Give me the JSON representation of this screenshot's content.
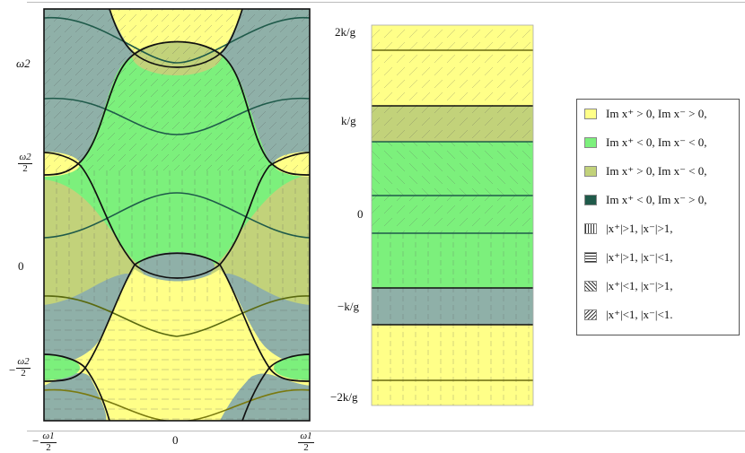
{
  "left_panel": {
    "y_ticks": {
      "omega2": "ω2",
      "half_omega2": {
        "num": "ω2",
        "den": "2"
      },
      "zero": "0",
      "neg_half_omega2": {
        "num": "ω2",
        "den": "2",
        "sign": "−"
      }
    },
    "x_ticks": {
      "neg_half_omega1": {
        "num": "ω1",
        "den": "2",
        "sign": "−"
      },
      "zero": "0",
      "half_omega1": {
        "num": "ω1",
        "den": "2"
      }
    }
  },
  "right_panel": {
    "y_ticks": [
      "2k/g",
      "k/g",
      "0",
      "−k/g",
      "−2k/g"
    ]
  },
  "legend": {
    "items": [
      {
        "label": "Im x⁺ > 0, Im x⁻ > 0,",
        "swatch": "#ffff88"
      },
      {
        "label": "Im x⁺ < 0, Im x⁻ < 0,",
        "swatch": "#7cf07c"
      },
      {
        "label": "Im x⁺ > 0, Im x⁻ < 0,",
        "swatch": "#c2d27a"
      },
      {
        "label": "Im x⁺ < 0, Im x⁻ > 0,",
        "swatch": "#1f5a4a"
      },
      {
        "label": "|x⁺|>1, |x⁻|>1,",
        "swatch": "pattern-vertical"
      },
      {
        "label": "|x⁺|>1, |x⁻|<1,",
        "swatch": "pattern-horizontal"
      },
      {
        "label": "|x⁺|<1, |x⁻|>1,",
        "swatch": "pattern-diag-down"
      },
      {
        "label": "|x⁺|<1, |x⁻|<1.",
        "swatch": "pattern-diag-up"
      }
    ]
  },
  "colors": {
    "yellow": "#ffff88",
    "green": "#7cf07c",
    "olive": "#c2d27a",
    "teal": "#8fb0a8",
    "dark_teal": "#1f5a4a"
  }
}
